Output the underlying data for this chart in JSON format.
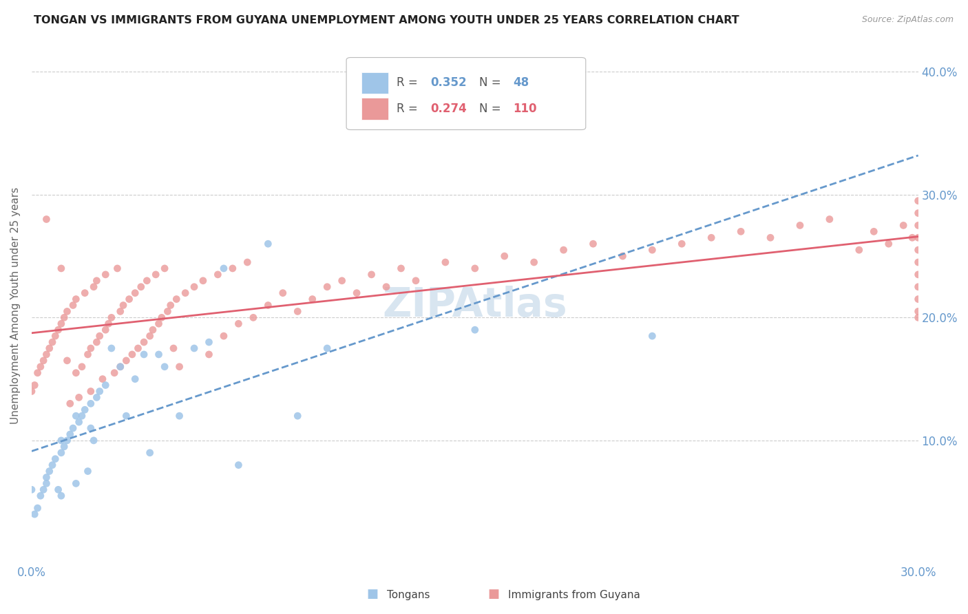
{
  "title": "TONGAN VS IMMIGRANTS FROM GUYANA UNEMPLOYMENT AMONG YOUTH UNDER 25 YEARS CORRELATION CHART",
  "source": "Source: ZipAtlas.com",
  "ylabel": "Unemployment Among Youth under 25 years",
  "xlim": [
    0.0,
    0.3
  ],
  "ylim": [
    0.0,
    0.42
  ],
  "color_tongan": "#9fc5e8",
  "color_guyana": "#ea9999",
  "color_tongan_line": "#6699cc",
  "color_guyana_line": "#e06070",
  "color_axis_labels": "#6699cc",
  "watermark_color": "#c8daea",
  "background_color": "#ffffff",
  "grid_color": "#cccccc",
  "tongan_x": [
    0.0,
    0.001,
    0.002,
    0.003,
    0.004,
    0.005,
    0.005,
    0.006,
    0.007,
    0.008,
    0.009,
    0.01,
    0.01,
    0.01,
    0.011,
    0.012,
    0.013,
    0.014,
    0.015,
    0.015,
    0.016,
    0.017,
    0.018,
    0.019,
    0.02,
    0.02,
    0.021,
    0.022,
    0.023,
    0.025,
    0.027,
    0.03,
    0.032,
    0.035,
    0.038,
    0.04,
    0.043,
    0.045,
    0.05,
    0.055,
    0.06,
    0.065,
    0.07,
    0.08,
    0.09,
    0.1,
    0.15,
    0.21
  ],
  "tongan_y": [
    0.06,
    0.04,
    0.045,
    0.055,
    0.06,
    0.065,
    0.07,
    0.075,
    0.08,
    0.085,
    0.06,
    0.09,
    0.055,
    0.1,
    0.095,
    0.1,
    0.105,
    0.11,
    0.065,
    0.12,
    0.115,
    0.12,
    0.125,
    0.075,
    0.13,
    0.11,
    0.1,
    0.135,
    0.14,
    0.145,
    0.175,
    0.16,
    0.12,
    0.15,
    0.17,
    0.09,
    0.17,
    0.16,
    0.12,
    0.175,
    0.18,
    0.24,
    0.08,
    0.26,
    0.12,
    0.175,
    0.19,
    0.185
  ],
  "guyana_x": [
    0.0,
    0.001,
    0.002,
    0.003,
    0.004,
    0.005,
    0.005,
    0.006,
    0.007,
    0.008,
    0.009,
    0.01,
    0.01,
    0.011,
    0.012,
    0.012,
    0.013,
    0.014,
    0.015,
    0.015,
    0.016,
    0.017,
    0.018,
    0.019,
    0.02,
    0.02,
    0.021,
    0.022,
    0.022,
    0.023,
    0.024,
    0.025,
    0.025,
    0.026,
    0.027,
    0.028,
    0.029,
    0.03,
    0.03,
    0.031,
    0.032,
    0.033,
    0.034,
    0.035,
    0.036,
    0.037,
    0.038,
    0.039,
    0.04,
    0.041,
    0.042,
    0.043,
    0.044,
    0.045,
    0.046,
    0.047,
    0.048,
    0.049,
    0.05,
    0.052,
    0.055,
    0.058,
    0.06,
    0.063,
    0.065,
    0.068,
    0.07,
    0.073,
    0.075,
    0.08,
    0.085,
    0.09,
    0.095,
    0.1,
    0.105,
    0.11,
    0.115,
    0.12,
    0.125,
    0.13,
    0.14,
    0.15,
    0.16,
    0.17,
    0.18,
    0.19,
    0.2,
    0.21,
    0.22,
    0.23,
    0.24,
    0.25,
    0.26,
    0.27,
    0.28,
    0.285,
    0.29,
    0.295,
    0.298,
    0.3,
    0.3,
    0.3,
    0.3,
    0.3,
    0.3,
    0.3,
    0.3,
    0.3,
    0.3,
    0.3
  ],
  "guyana_y": [
    0.14,
    0.145,
    0.155,
    0.16,
    0.165,
    0.17,
    0.28,
    0.175,
    0.18,
    0.185,
    0.19,
    0.195,
    0.24,
    0.2,
    0.165,
    0.205,
    0.13,
    0.21,
    0.155,
    0.215,
    0.135,
    0.16,
    0.22,
    0.17,
    0.14,
    0.175,
    0.225,
    0.18,
    0.23,
    0.185,
    0.15,
    0.19,
    0.235,
    0.195,
    0.2,
    0.155,
    0.24,
    0.205,
    0.16,
    0.21,
    0.165,
    0.215,
    0.17,
    0.22,
    0.175,
    0.225,
    0.18,
    0.23,
    0.185,
    0.19,
    0.235,
    0.195,
    0.2,
    0.24,
    0.205,
    0.21,
    0.175,
    0.215,
    0.16,
    0.22,
    0.225,
    0.23,
    0.17,
    0.235,
    0.185,
    0.24,
    0.195,
    0.245,
    0.2,
    0.21,
    0.22,
    0.205,
    0.215,
    0.225,
    0.23,
    0.22,
    0.235,
    0.225,
    0.24,
    0.23,
    0.245,
    0.24,
    0.25,
    0.245,
    0.255,
    0.26,
    0.25,
    0.255,
    0.26,
    0.265,
    0.27,
    0.265,
    0.275,
    0.28,
    0.255,
    0.27,
    0.26,
    0.275,
    0.265,
    0.2,
    0.205,
    0.215,
    0.225,
    0.235,
    0.245,
    0.255,
    0.265,
    0.275,
    0.285,
    0.295
  ]
}
